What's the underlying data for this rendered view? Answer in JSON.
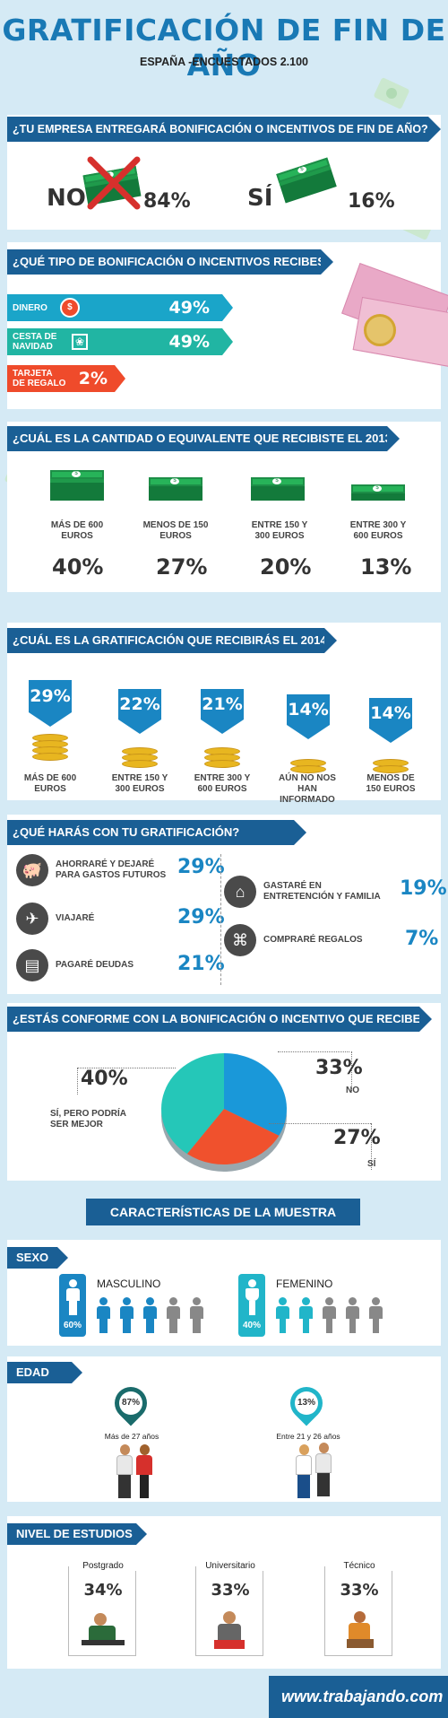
{
  "header": {
    "title": "GRATIFICACIÓN DE FIN DE AÑO",
    "subtitle": "ESPAÑA -ENCUESTADOS 2.100"
  },
  "q1": {
    "question": "¿TU EMPRESA ENTREGARÁ BONIFICACIÓN O INCENTIVOS DE FIN DE AÑO?",
    "no_label": "NO",
    "no_pct": "84%",
    "si_label": "SÍ",
    "si_pct": "16%"
  },
  "q2": {
    "question": "¿QUÉ TIPO DE BONIFICACIÓN O INCENTIVOS RECIBES?",
    "items": [
      {
        "label": "DINERO",
        "pct": "49%",
        "color": "#1aa5c9"
      },
      {
        "label": "CESTA DE NAVIDAD",
        "pct": "49%",
        "color": "#21b5a3"
      },
      {
        "label": "TARJETA DE REGALO",
        "pct": "2%",
        "color": "#ef4b2b"
      }
    ]
  },
  "q3": {
    "question": "¿CUÁL ES LA CANTIDAD O EQUIVALENTE QUE RECIBISTE EL 2013?",
    "items": [
      {
        "label": "MÁS DE 600 EUROS",
        "pct": "40%"
      },
      {
        "label": "MENOS DE 150 EUROS",
        "pct": "27%"
      },
      {
        "label": "ENTRE 150 Y 300 EUROS",
        "pct": "20%"
      },
      {
        "label": "ENTRE 300 Y 600 EUROS",
        "pct": "13%"
      }
    ]
  },
  "q4": {
    "question": "¿CUÁL ES LA GRATIFICACIÓN QUE RECIBIRÁS EL 2014?",
    "items": [
      {
        "label": "MÁS DE 600 EUROS",
        "pct": "29%"
      },
      {
        "label": "ENTRE 150 Y 300 EUROS",
        "pct": "22%"
      },
      {
        "label": "ENTRE 300 Y 600 EUROS",
        "pct": "21%"
      },
      {
        "label": "AÚN NO NOS HAN INFORMADO",
        "pct": "14%"
      },
      {
        "label": "MENOS DE 150 EUROS",
        "pct": "14%"
      }
    ]
  },
  "q5": {
    "question": "¿QUÉ HARÁS CON TU GRATIFICACIÓN?",
    "left": [
      {
        "label": "AHORRARÉ Y DEJARÉ PARA GASTOS FUTUROS",
        "pct": "29%",
        "icon": "piggy-bank-icon"
      },
      {
        "label": "VIAJARÉ",
        "pct": "29%",
        "icon": "airplane-icon"
      },
      {
        "label": "PAGARÉ DEUDAS",
        "pct": "21%",
        "icon": "bill-icon"
      }
    ],
    "right": [
      {
        "label": "GASTARÉ EN ENTRETENCIÓN Y FAMILIA",
        "pct": "19%",
        "icon": "family-icon"
      },
      {
        "label": "COMPRARÉ REGALOS",
        "pct": "7%",
        "icon": "gift-icon"
      }
    ]
  },
  "q6": {
    "question": "¿ESTÁS CONFORME CON LA BONIFICACIÓN O INCENTIVO QUE RECIBES?",
    "slices": [
      {
        "label": "NO",
        "pct": "33%",
        "value": 33,
        "color": "#1a98d9"
      },
      {
        "label": "SÍ",
        "pct": "27%",
        "value": 27,
        "color": "#f0512d"
      },
      {
        "label": "SÍ, PERO PODRÍA SER MEJOR",
        "pct": "40%",
        "value": 40,
        "color": "#25c7b8"
      }
    ]
  },
  "sample": {
    "title": "CARACTERÍSTICAS DE LA MUESTRA",
    "sexo": {
      "label": "SEXO",
      "male_label": "MASCULINO",
      "male_pct": "60%",
      "female_label": "FEMENINO",
      "female_pct": "40%"
    },
    "edad": {
      "label": "EDAD",
      "a_pct": "87%",
      "a_label": "Más de 27 años",
      "b_pct": "13%",
      "b_label": "Entre 21 y 26 años"
    },
    "estudios": {
      "label": "NIVEL DE ESTUDIOS",
      "items": [
        {
          "label": "Postgrado",
          "pct": "34%"
        },
        {
          "label": "Universitario",
          "pct": "33%"
        },
        {
          "label": "Técnico",
          "pct": "33%"
        }
      ]
    }
  },
  "footer": {
    "brand": "www.trabajando.com"
  }
}
